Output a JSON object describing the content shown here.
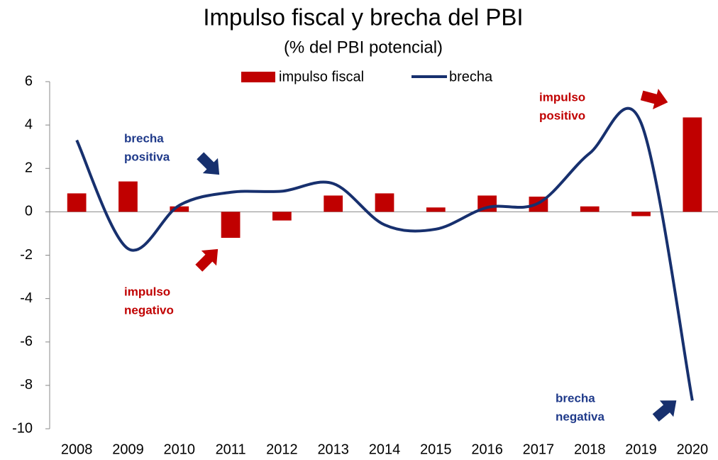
{
  "chart_data": {
    "type": "bar_line",
    "title": "Impulso fiscal y brecha del PBI",
    "subtitle": "(% del PBI potencial)",
    "categories": [
      "2008",
      "2009",
      "2010",
      "2011",
      "2012",
      "2013",
      "2014",
      "2015",
      "2016",
      "2017",
      "2018",
      "2019",
      "2020"
    ],
    "series": [
      {
        "name": "impulso fiscal",
        "type": "bar",
        "color": "#c00000",
        "values": [
          0.85,
          1.4,
          0.25,
          -1.2,
          -0.4,
          0.75,
          0.85,
          0.2,
          0.75,
          0.7,
          0.25,
          -0.2,
          4.35
        ]
      },
      {
        "name": "brecha",
        "type": "line",
        "color": "#17306e",
        "values": [
          3.3,
          -1.7,
          0.3,
          0.9,
          0.95,
          1.3,
          -0.6,
          -0.8,
          0.2,
          0.4,
          2.7,
          4.1,
          -8.7
        ]
      }
    ],
    "ylim": [
      -10,
      6
    ],
    "yticks": [
      6,
      4,
      2,
      0,
      -2,
      -4,
      -6,
      -8,
      -10
    ],
    "grid": false,
    "legend": "top",
    "annotations": [
      {
        "lines": [
          "brecha",
          "positiva"
        ],
        "color": "#1f3a8a"
      },
      {
        "lines": [
          "impulso",
          "negativo"
        ],
        "color": "#c00000"
      },
      {
        "lines": [
          "impulso",
          "positivo"
        ],
        "color": "#c00000"
      },
      {
        "lines": [
          "brecha",
          "negativa"
        ],
        "color": "#1f3a8a"
      }
    ]
  }
}
